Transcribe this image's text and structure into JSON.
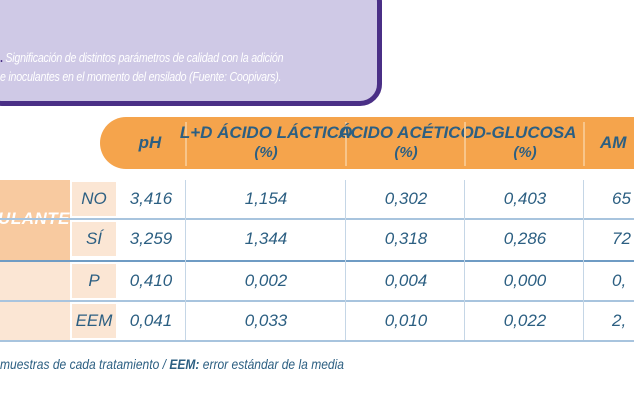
{
  "caption": {
    "number": ".",
    "line1": "Significación de distintos parámetros de calidad con la adición",
    "line2": "e inoculantes en el momento del ensilado (Fuente: Coopivars)."
  },
  "columns": [
    {
      "name": "pH",
      "unit": ""
    },
    {
      "name": "L+D ÁCIDO LÁCTICO",
      "unit": "(%)"
    },
    {
      "name": "ÁCIDO ACÉTICO",
      "unit": "(%)"
    },
    {
      "name": "D-GLUCOSA",
      "unit": "(%)"
    },
    {
      "name": "AM",
      "unit": ""
    }
  ],
  "group_label": "ULANTE",
  "rows": [
    {
      "label": "NO",
      "values": [
        "3,416",
        "1,154",
        "0,302",
        "0,403",
        "65"
      ]
    },
    {
      "label": "SÍ",
      "values": [
        "3,259",
        "1,344",
        "0,318",
        "0,286",
        "72"
      ]
    },
    {
      "label": "P",
      "values": [
        "0,410",
        "0,002",
        "0,004",
        "0,000",
        "0,"
      ]
    },
    {
      "label": "EEM",
      "values": [
        "0,041",
        "0,033",
        "0,010",
        "0,022",
        "2,"
      ]
    }
  ],
  "footnote": {
    "text1": "muestras de cada tratamiento  /",
    "abbr": "EEM:",
    "text2": "error estándar de la media"
  },
  "colors": {
    "header": "#f5a44c",
    "caption_bg": "#cfc9e6",
    "caption_border": "#4a2f86",
    "text": "#2c5f82"
  }
}
